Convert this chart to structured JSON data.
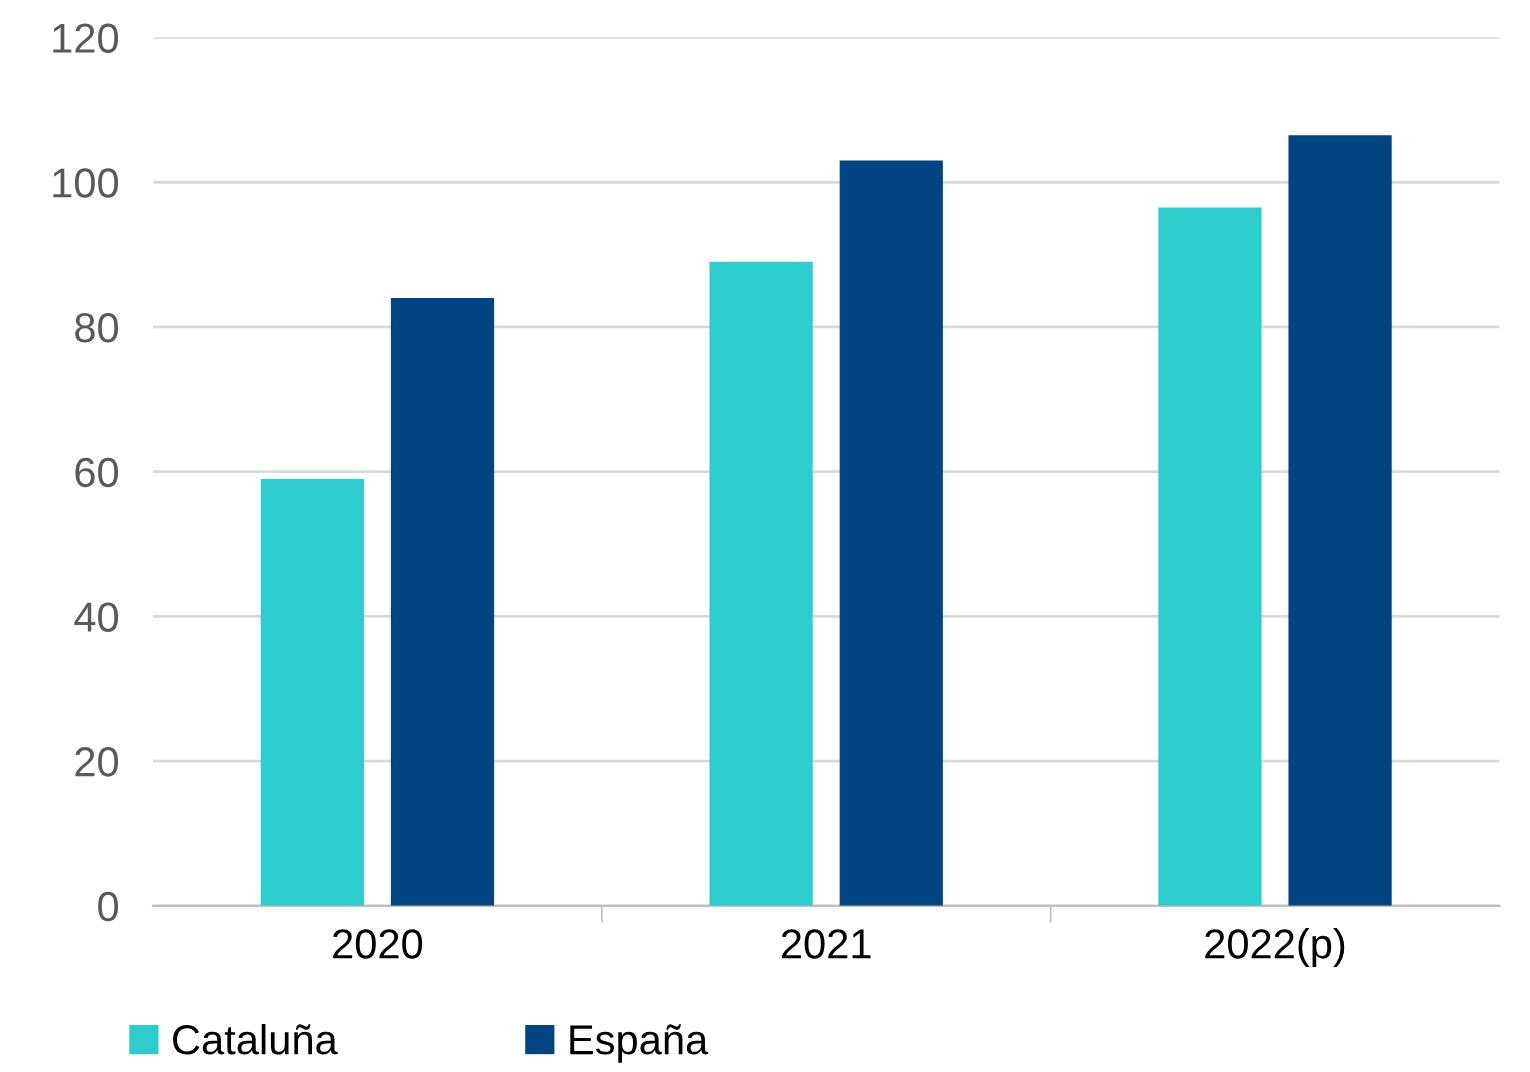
{
  "chart_data": {
    "type": "bar",
    "categories": [
      "2020",
      "2021",
      "2022(p)"
    ],
    "series": [
      {
        "name": "Cataluña",
        "color": "#2ecdcd",
        "values": [
          59,
          89,
          96.5
        ]
      },
      {
        "name": "España",
        "color": "#004481",
        "values": [
          84,
          103,
          106.5
        ]
      }
    ],
    "ylim": [
      0,
      120
    ],
    "yticks": [
      0,
      20,
      40,
      60,
      80,
      100,
      120
    ],
    "grid": "y",
    "legend": "bottom left"
  }
}
